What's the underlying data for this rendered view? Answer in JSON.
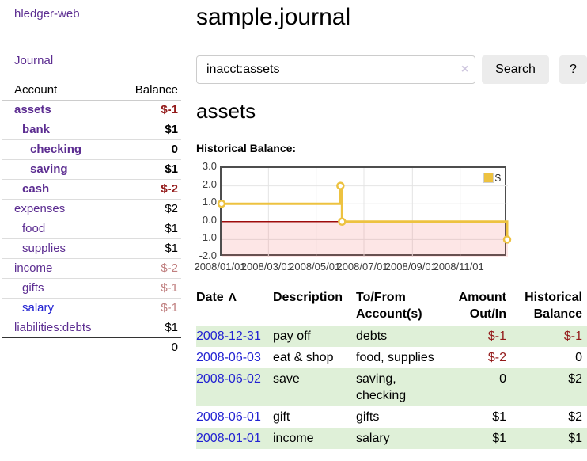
{
  "app": {
    "brand": "hledger-web"
  },
  "nav": {
    "journal": "Journal"
  },
  "icons": {
    "sort_ascending": "Λ",
    "clear": "×"
  },
  "sidebar": {
    "header": {
      "account": "Account",
      "balance": "Balance"
    },
    "accounts": [
      {
        "name": "assets",
        "balance": "$-1",
        "depth": 1,
        "bold": true,
        "neg": "strong"
      },
      {
        "name": "bank",
        "balance": "$1",
        "depth": 2,
        "bold": true
      },
      {
        "name": "checking",
        "balance": "0",
        "depth": 3,
        "bold": true
      },
      {
        "name": "saving",
        "balance": "$1",
        "depth": 3,
        "bold": true
      },
      {
        "name": "cash",
        "balance": "$-2",
        "depth": 2,
        "bold": true,
        "neg": "strong"
      },
      {
        "name": "expenses",
        "balance": "$2",
        "depth": 1
      },
      {
        "name": "food",
        "balance": "$1",
        "depth": 2
      },
      {
        "name": "supplies",
        "balance": "$1",
        "depth": 2
      },
      {
        "name": "income",
        "balance": "$-2",
        "depth": 1,
        "neg": "faded"
      },
      {
        "name": "gifts",
        "balance": "$-1",
        "depth": 2,
        "neg": "faded"
      },
      {
        "name": "salary",
        "balance": "$-1",
        "depth": 2,
        "neg": "faded",
        "link_color": "blue"
      },
      {
        "name": "liabilities:debts",
        "balance": "$1",
        "depth": 1
      }
    ],
    "total": "0"
  },
  "header": {
    "title": "sample.journal"
  },
  "search": {
    "value": "inacct:assets",
    "button": "Search",
    "help_button": "?"
  },
  "account_page": {
    "title": "assets",
    "chart_label": "Historical Balance:"
  },
  "chart_data": {
    "type": "line",
    "title": "Historical Balance",
    "x_range": [
      "2008-01-01",
      "2009-01-01"
    ],
    "ylim": [
      -2,
      3
    ],
    "y_ticks": [
      "3.0",
      "2.0",
      "1.0",
      "0.0",
      "-1.0",
      "-2.0"
    ],
    "x_ticks": [
      {
        "label": "2008/01/01",
        "date": "2008-01-01"
      },
      {
        "label": "2008/03/01",
        "date": "2008-03-01"
      },
      {
        "label": "2008/05/01",
        "date": "2008-05-01"
      },
      {
        "label": "2008/07/01",
        "date": "2008-07-01"
      },
      {
        "label": "2008/09/01",
        "date": "2008-09-01"
      },
      {
        "label": "2008/11/01",
        "date": "2008-11-01"
      }
    ],
    "series": [
      {
        "name": "$",
        "color": "#edc240",
        "step": true,
        "points": [
          {
            "date": "2008-01-01",
            "value": 1
          },
          {
            "date": "2008-06-01",
            "value": 2
          },
          {
            "date": "2008-06-03",
            "value": 0
          },
          {
            "date": "2008-12-31",
            "value": -1
          }
        ]
      }
    ],
    "legend_position": "top-right",
    "grid": true,
    "gridline_color": "#e4e4e4",
    "zero_line_color": "#9e0b0b",
    "negative_region_fill": "rgba(240,100,100,0.16)"
  },
  "register": {
    "columns": [
      {
        "label": "Date",
        "sorted": "ascending"
      },
      {
        "label": "Description"
      },
      {
        "label": "To/From Account(s)"
      },
      {
        "label": "Amount Out/In",
        "align": "right"
      },
      {
        "label": "Historical Balance",
        "align": "right"
      }
    ],
    "rows": [
      {
        "date": "2008-12-31",
        "description": "pay off",
        "accounts": "debts",
        "amount": "$-1",
        "amount_negative": true,
        "balance": "$-1",
        "balance_negative": true
      },
      {
        "date": "2008-06-03",
        "description": "eat & shop",
        "accounts": "food, supplies",
        "amount": "$-2",
        "amount_negative": true,
        "balance": "0"
      },
      {
        "date": "2008-06-02",
        "description": "save",
        "accounts": "saving, checking",
        "amount": "0",
        "balance": "$2"
      },
      {
        "date": "2008-06-01",
        "description": "gift",
        "accounts": "gifts",
        "amount": "$1",
        "balance": "$2"
      },
      {
        "date": "2008-01-01",
        "description": "income",
        "accounts": "salary",
        "amount": "$1",
        "balance": "$1"
      }
    ]
  }
}
